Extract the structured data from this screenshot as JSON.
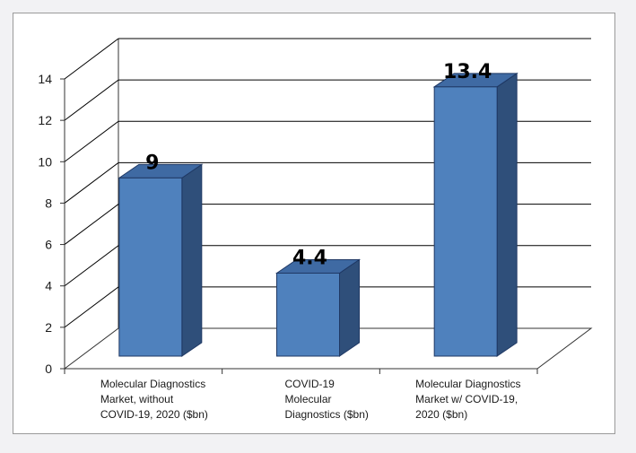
{
  "chart_data": {
    "type": "bar",
    "categories": [
      [
        "Molecular Diagnostics",
        "Market, without",
        "COVID-19, 2020 ($bn)"
      ],
      [
        "COVID-19",
        "Molecular",
        "Diagnostics ($bn)"
      ],
      [
        "Molecular Diagnostics",
        "Market w/ COVID-19,",
        "2020 ($bn)"
      ]
    ],
    "values": [
      9,
      4.4,
      13.4
    ],
    "data_labels": [
      "9",
      "4.4",
      "13.4"
    ],
    "yticks": [
      "0",
      "2",
      "4",
      "6",
      "8",
      "10",
      "12",
      "14"
    ],
    "ylim": [
      0,
      14
    ],
    "title": "",
    "xlabel": "",
    "ylabel": "",
    "grid": true,
    "legend": "none",
    "style": "3d",
    "colors": {
      "bar_front": "#4f81bd",
      "bar_side": "#2f4f7a",
      "bar_top": "#3f6aa3",
      "bar_edge": "#1f3864",
      "gridline": "#000000"
    }
  }
}
